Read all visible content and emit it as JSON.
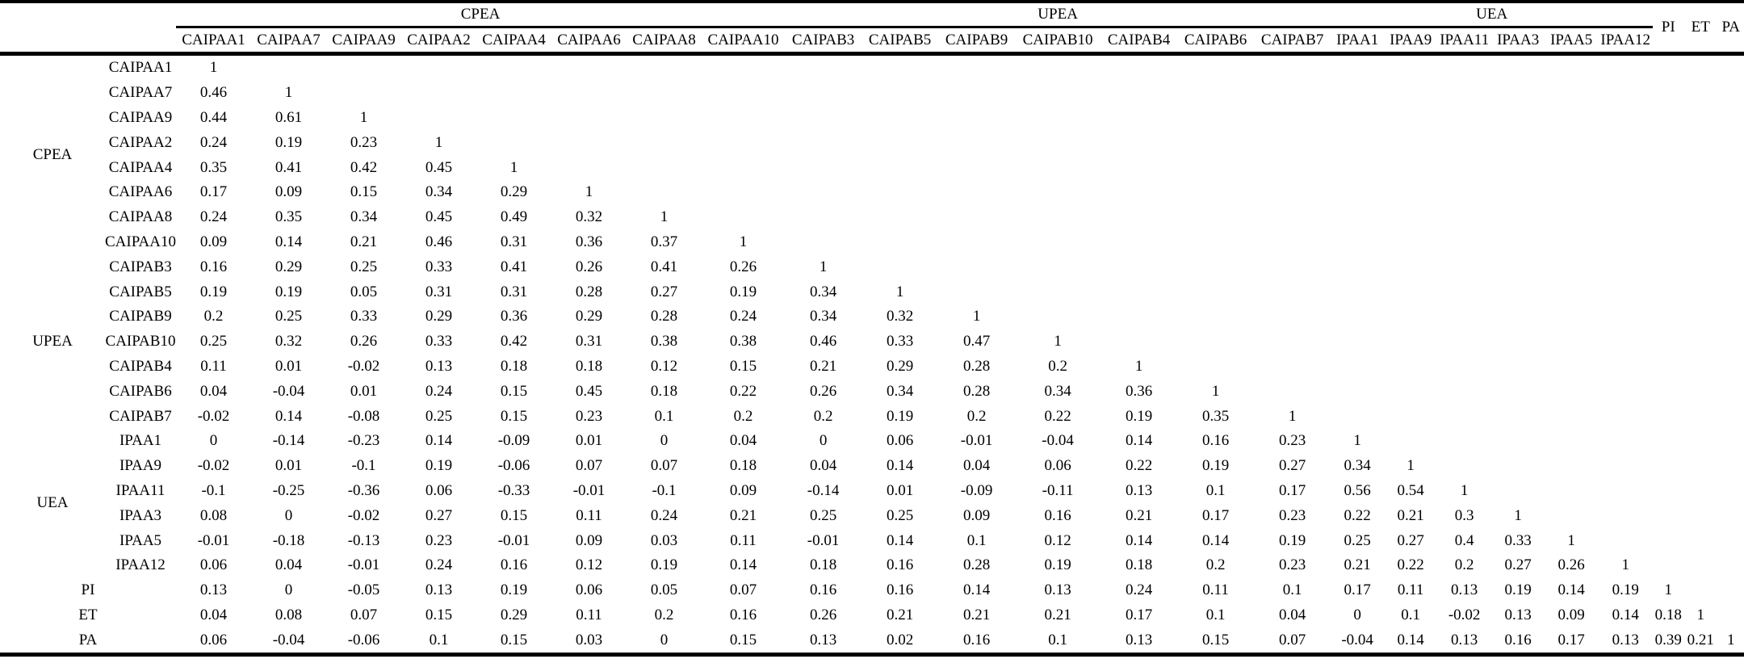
{
  "table": {
    "col_groups": [
      {
        "label": "CPEA",
        "span": 8
      },
      {
        "label": "UPEA",
        "span": 7
      },
      {
        "label": "UEA",
        "span": 6
      }
    ],
    "columns": [
      "CAIPAA1",
      "CAIPAA7",
      "CAIPAA9",
      "CAIPAA2",
      "CAIPAA4",
      "CAIPAA6",
      "CAIPAA8",
      "CAIPAA10",
      "CAIPAB3",
      "CAIPAB5",
      "CAIPAB9",
      "CAIPAB10",
      "CAIPAB4",
      "CAIPAB6",
      "CAIPAB7",
      "IPAA1",
      "IPAA9",
      "IPAA11",
      "IPAA3",
      "IPAA5",
      "IPAA12"
    ],
    "tail_cols": [
      "PI",
      "ET",
      "PA"
    ],
    "row_groups": [
      {
        "label": "CPEA",
        "size": 8
      },
      {
        "label": "UPEA",
        "size": 7
      },
      {
        "label": "UEA",
        "size": 6
      }
    ],
    "row_labels": [
      "CAIPAA1",
      "CAIPAA7",
      "CAIPAA9",
      "CAIPAA2",
      "CAIPAA4",
      "CAIPAA6",
      "CAIPAA8",
      "CAIPAA10",
      "CAIPAB3",
      "CAIPAB5",
      "CAIPAB9",
      "CAIPAB10",
      "CAIPAB4",
      "CAIPAB6",
      "CAIPAB7",
      "IPAA1",
      "IPAA9",
      "IPAA11",
      "IPAA3",
      "IPAA5",
      "IPAA12"
    ],
    "tail_rows": [
      "PI",
      "ET",
      "PA"
    ],
    "values": [
      [
        1
      ],
      [
        0.46,
        1
      ],
      [
        0.44,
        0.61,
        1
      ],
      [
        0.24,
        0.19,
        0.23,
        1
      ],
      [
        0.35,
        0.41,
        0.42,
        0.45,
        1
      ],
      [
        0.17,
        0.09,
        0.15,
        0.34,
        0.29,
        1
      ],
      [
        0.24,
        0.35,
        0.34,
        0.45,
        0.49,
        0.32,
        1
      ],
      [
        0.09,
        0.14,
        0.21,
        0.46,
        0.31,
        0.36,
        0.37,
        1
      ],
      [
        0.16,
        0.29,
        0.25,
        0.33,
        0.41,
        0.26,
        0.41,
        0.26,
        1
      ],
      [
        0.19,
        0.19,
        0.05,
        0.31,
        0.31,
        0.28,
        0.27,
        0.19,
        0.34,
        1
      ],
      [
        0.2,
        0.25,
        0.33,
        0.29,
        0.36,
        0.29,
        0.28,
        0.24,
        0.34,
        0.32,
        1
      ],
      [
        0.25,
        0.32,
        0.26,
        0.33,
        0.42,
        0.31,
        0.38,
        0.38,
        0.46,
        0.33,
        0.47,
        1
      ],
      [
        0.11,
        0.01,
        -0.02,
        0.13,
        0.18,
        0.18,
        0.12,
        0.15,
        0.21,
        0.29,
        0.28,
        0.2,
        1
      ],
      [
        0.04,
        -0.04,
        0.01,
        0.24,
        0.15,
        0.45,
        0.18,
        0.22,
        0.26,
        0.34,
        0.28,
        0.34,
        0.36,
        1
      ],
      [
        -0.02,
        0.14,
        -0.08,
        0.25,
        0.15,
        0.23,
        0.1,
        0.2,
        0.2,
        0.19,
        0.2,
        0.22,
        0.19,
        0.35,
        1
      ],
      [
        0,
        -0.14,
        -0.23,
        0.14,
        -0.09,
        0.01,
        0,
        0.04,
        0,
        0.06,
        -0.01,
        -0.04,
        0.14,
        0.16,
        0.23,
        1
      ],
      [
        -0.02,
        0.01,
        -0.1,
        0.19,
        -0.06,
        0.07,
        0.07,
        0.18,
        0.04,
        0.14,
        0.04,
        0.06,
        0.22,
        0.19,
        0.27,
        0.34,
        1
      ],
      [
        -0.1,
        -0.25,
        -0.36,
        0.06,
        -0.33,
        -0.01,
        -0.1,
        0.09,
        -0.14,
        0.01,
        -0.09,
        -0.11,
        0.13,
        0.1,
        0.17,
        0.56,
        0.54,
        1
      ],
      [
        0.08,
        0,
        -0.02,
        0.27,
        0.15,
        0.11,
        0.24,
        0.21,
        0.25,
        0.25,
        0.09,
        0.16,
        0.21,
        0.17,
        0.23,
        0.22,
        0.21,
        0.3,
        1
      ],
      [
        -0.01,
        -0.18,
        -0.13,
        0.23,
        -0.01,
        0.09,
        0.03,
        0.11,
        -0.01,
        0.14,
        0.1,
        0.12,
        0.14,
        0.14,
        0.19,
        0.25,
        0.27,
        0.4,
        0.33,
        1
      ],
      [
        0.06,
        0.04,
        -0.01,
        0.24,
        0.16,
        0.12,
        0.19,
        0.14,
        0.18,
        0.16,
        0.28,
        0.19,
        0.18,
        0.2,
        0.23,
        0.21,
        0.22,
        0.2,
        0.27,
        0.26,
        1
      ],
      [
        0.13,
        0,
        -0.05,
        0.13,
        0.19,
        0.06,
        0.05,
        0.07,
        0.16,
        0.16,
        0.14,
        0.13,
        0.24,
        0.11,
        0.1,
        0.17,
        0.11,
        0.13,
        0.19,
        0.14,
        0.19,
        1
      ],
      [
        0.04,
        0.08,
        0.07,
        0.15,
        0.29,
        0.11,
        0.2,
        0.16,
        0.26,
        0.21,
        0.21,
        0.21,
        0.17,
        0.1,
        0.04,
        0,
        0.1,
        -0.02,
        0.13,
        0.09,
        0.14,
        0.18,
        1
      ],
      [
        0.06,
        -0.04,
        -0.06,
        0.1,
        0.15,
        0.03,
        0,
        0.15,
        0.13,
        0.02,
        0.16,
        0.1,
        0.13,
        0.15,
        0.07,
        -0.04,
        0.14,
        0.13,
        0.16,
        0.17,
        0.13,
        0.39,
        0.21,
        1
      ]
    ]
  },
  "chart_data": {
    "type": "table",
    "title": "",
    "note": "Lower-triangular correlation matrix of 21 items grouped as CPEA, UPEA, UEA plus PI, ET, PA; diagonal = 1"
  }
}
